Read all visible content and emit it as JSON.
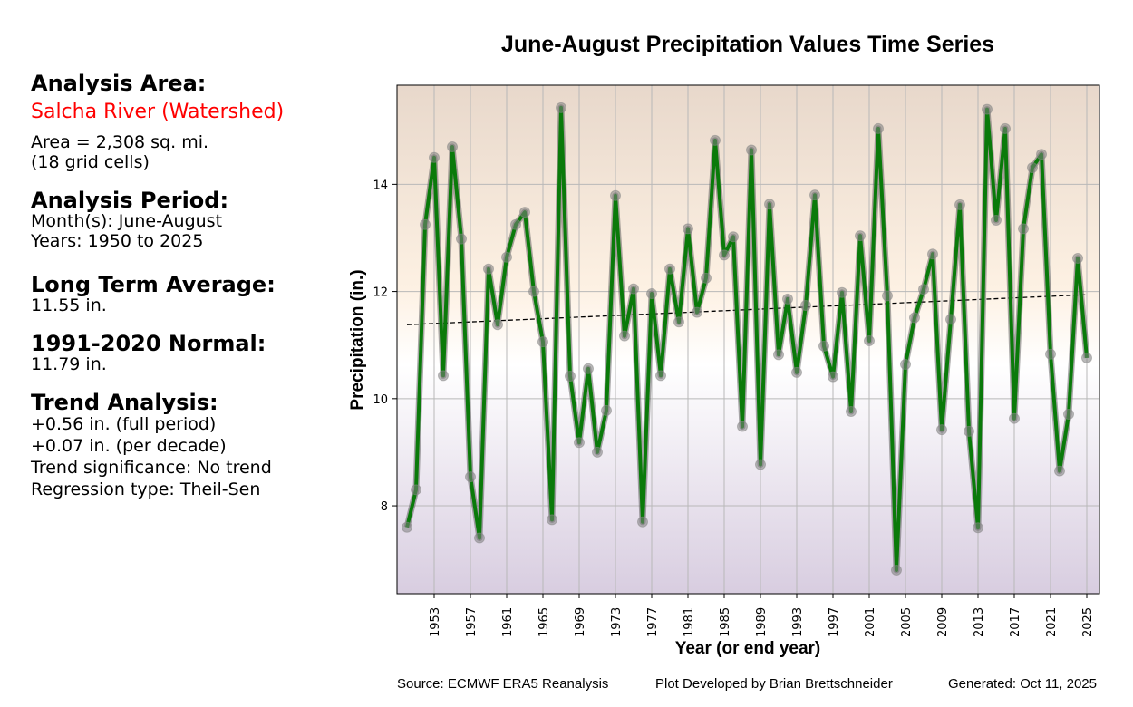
{
  "sidebar": {
    "area_heading": "Analysis Area:",
    "area_name": "Salcha River (Watershed)",
    "area_size": "Area = 2,308 sq. mi.",
    "grid_cells": "(18 grid cells)",
    "period_heading": "Analysis Period:",
    "months": "Month(s): June-August",
    "years": "Years: 1950 to 2025",
    "lta_heading": "Long Term Average:",
    "lta_value": "11.55 in.",
    "normal_heading": "1991-2020 Normal:",
    "normal_value": "11.79 in.",
    "trend_heading": "Trend Analysis:",
    "trend_full": "+0.56 in. (full period)",
    "trend_decade": "+0.07 in. (per decade)",
    "trend_significance": "Trend significance: No trend",
    "regression_type": "Regression type: Theil-Sen"
  },
  "footer": {
    "source": "Source: ECMWF ERA5 Reanalysis",
    "author": "Plot Developed by Brian Brettschneider",
    "generated": "Generated: Oct 11, 2025"
  },
  "colors": {
    "line": "#0a7a0a",
    "marker": "#808080",
    "trend": "#000000",
    "bg_top": "#e8d8cb",
    "bg_mid_warm": "#fdf1e3",
    "bg_mid": "#ffffff",
    "bg_bottom": "#d8cde0",
    "accent_red": "#ff0000"
  },
  "chart_data": {
    "type": "line",
    "title": "June-August Precipitation Values Time Series",
    "xlabel": "Year (or end year)",
    "ylabel": "Precipitation (in.)",
    "xlim": [
      1948.9,
      2026.4
    ],
    "ylim": [
      6.36,
      15.85
    ],
    "grid": true,
    "x_ticks": [
      1953,
      1957,
      1961,
      1965,
      1969,
      1973,
      1977,
      1981,
      1985,
      1989,
      1993,
      1997,
      2001,
      2005,
      2009,
      2013,
      2017,
      2021,
      2025
    ],
    "y_ticks": [
      8,
      10,
      12,
      14
    ],
    "x": [
      1950,
      1951,
      1952,
      1953,
      1954,
      1955,
      1956,
      1957,
      1958,
      1959,
      1960,
      1961,
      1962,
      1963,
      1964,
      1965,
      1966,
      1967,
      1968,
      1969,
      1970,
      1971,
      1972,
      1973,
      1974,
      1975,
      1976,
      1977,
      1978,
      1979,
      1980,
      1981,
      1982,
      1983,
      1984,
      1985,
      1986,
      1987,
      1988,
      1989,
      1990,
      1991,
      1992,
      1993,
      1994,
      1995,
      1996,
      1997,
      1998,
      1999,
      2000,
      2001,
      2002,
      2003,
      2004,
      2005,
      2006,
      2007,
      2008,
      2009,
      2010,
      2011,
      2012,
      2013,
      2014,
      2015,
      2016,
      2017,
      2018,
      2019,
      2020,
      2021,
      2022,
      2023,
      2024,
      2025
    ],
    "series": [
      {
        "name": "Precipitation",
        "values": [
          7.6,
          8.3,
          13.25,
          14.5,
          10.43,
          14.7,
          12.98,
          8.54,
          7.4,
          12.42,
          11.38,
          12.64,
          13.25,
          13.48,
          12.0,
          11.06,
          7.74,
          15.43,
          10.42,
          9.18,
          10.56,
          9.0,
          9.78,
          13.79,
          11.17,
          12.05,
          7.7,
          11.96,
          10.43,
          12.42,
          11.43,
          13.17,
          11.61,
          12.25,
          14.82,
          12.68,
          13.02,
          9.48,
          14.64,
          8.77,
          13.63,
          10.82,
          11.86,
          10.49,
          11.74,
          13.8,
          10.98,
          10.41,
          11.98,
          9.76,
          13.04,
          11.08,
          15.04,
          11.92,
          6.8,
          10.64,
          11.51,
          12.04,
          12.7,
          9.42,
          11.48,
          13.62,
          9.39,
          7.59,
          15.4,
          13.33,
          15.04,
          9.63,
          13.17,
          14.31,
          14.56,
          10.83,
          8.65,
          9.71,
          12.62,
          10.76
        ]
      }
    ],
    "trend_line": {
      "name": "Theil-Sen trend",
      "x": [
        1950,
        2025
      ],
      "y": [
        11.38,
        11.94
      ]
    }
  }
}
